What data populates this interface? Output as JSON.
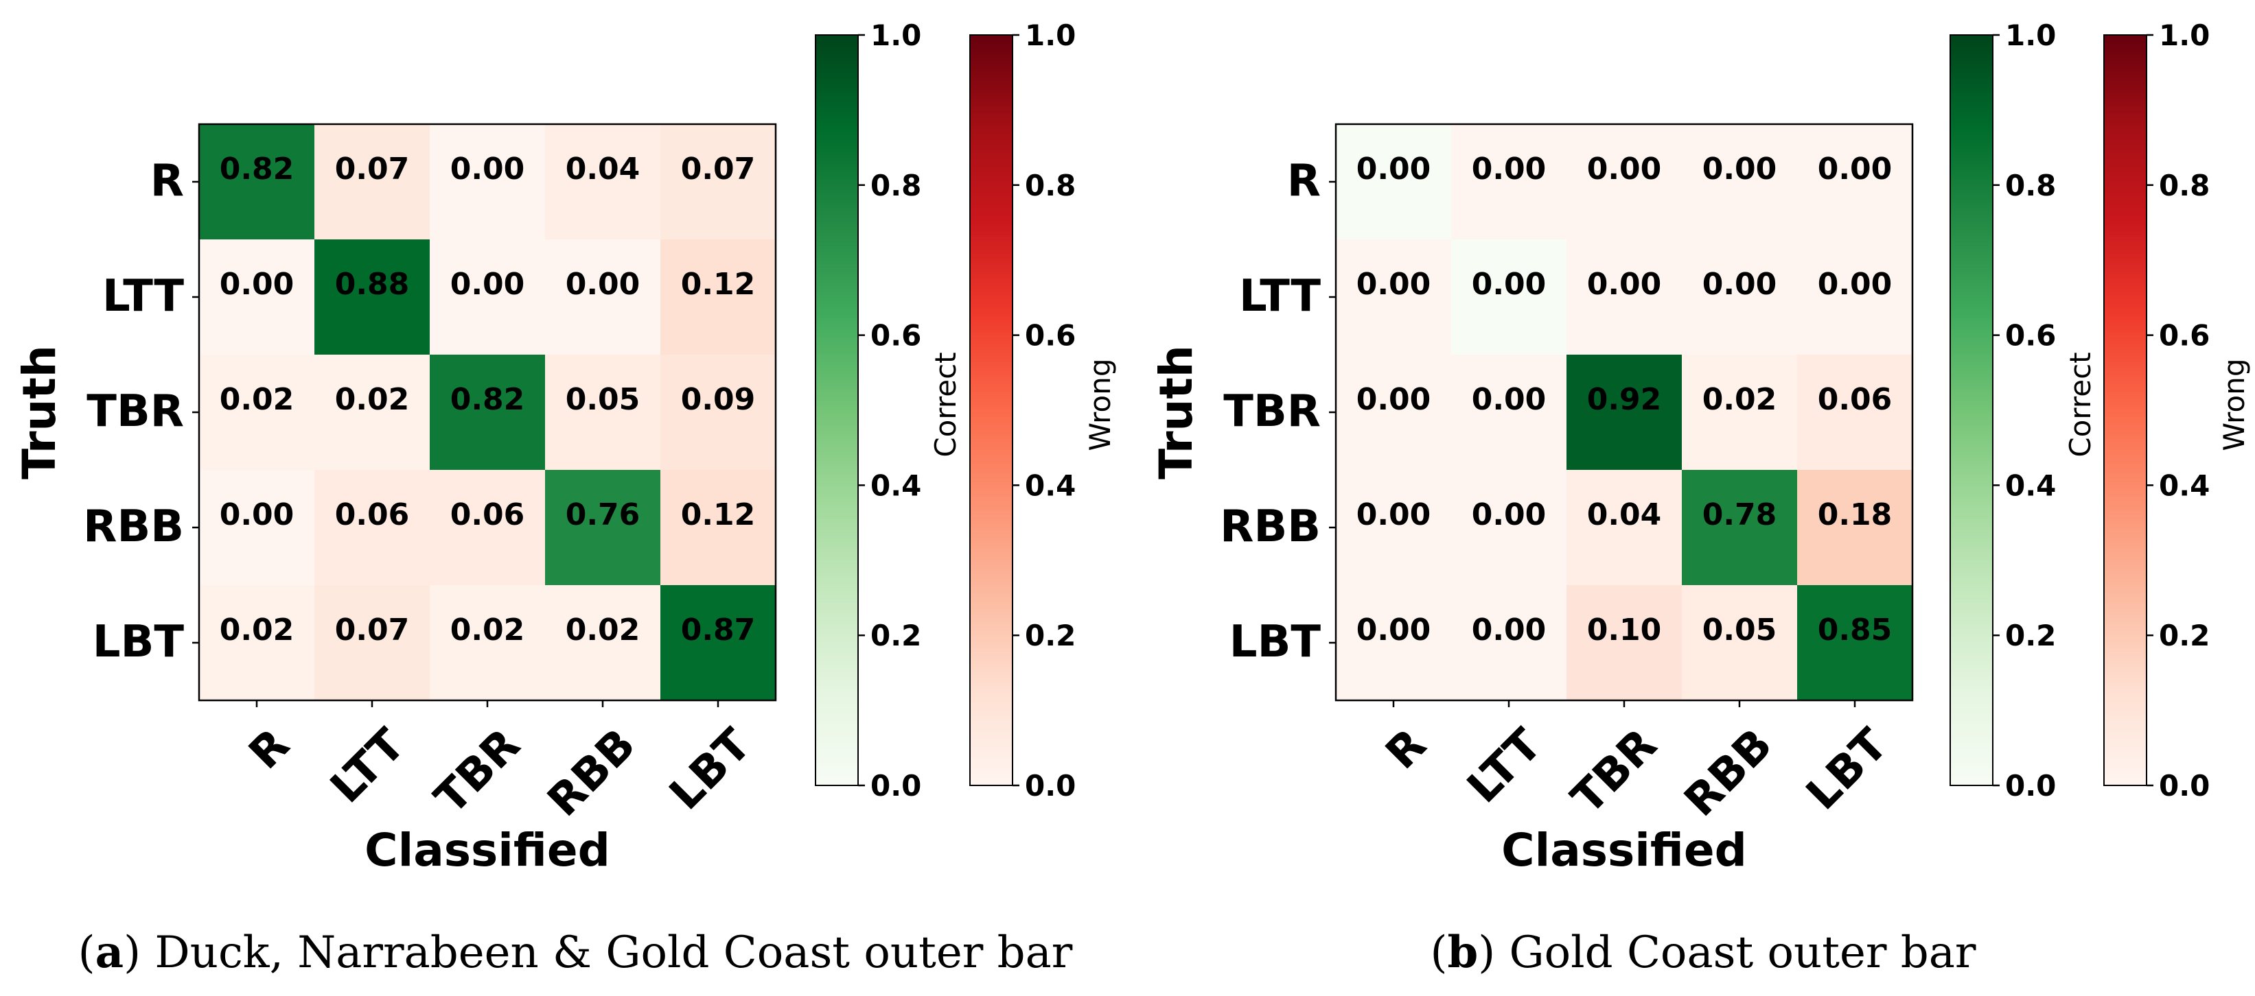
{
  "figure": {
    "panels": [
      {
        "caption_label": "a",
        "caption_text": "Duck, Narrabeen & Gold Coast outer bar"
      },
      {
        "caption_label": "b",
        "caption_text": "Gold Coast outer bar"
      }
    ]
  },
  "chart_data": [
    {
      "type": "heatmap",
      "subtype": "confusion-matrix",
      "xlabel": "Classified",
      "ylabel": "Truth",
      "x_categories": [
        "R",
        "LTT",
        "TBR",
        "RBB",
        "LBT"
      ],
      "y_categories": [
        "R",
        "LTT",
        "TBR",
        "RBB",
        "LBT"
      ],
      "values": [
        [
          0.82,
          0.07,
          0.0,
          0.04,
          0.07
        ],
        [
          0.0,
          0.88,
          0.0,
          0.0,
          0.12
        ],
        [
          0.02,
          0.02,
          0.82,
          0.05,
          0.09
        ],
        [
          0.0,
          0.06,
          0.06,
          0.76,
          0.12
        ],
        [
          0.02,
          0.07,
          0.02,
          0.02,
          0.87
        ]
      ],
      "colorbars": [
        {
          "label": "Correct",
          "colormap": "Greens",
          "range": [
            0.0,
            1.0
          ],
          "ticks": [
            "0.0",
            "0.2",
            "0.4",
            "0.6",
            "0.8",
            "1.0"
          ]
        },
        {
          "label": "Wrong",
          "colormap": "Reds",
          "range": [
            0.0,
            1.0
          ],
          "ticks": [
            "0.0",
            "0.2",
            "0.4",
            "0.6",
            "0.8",
            "1.0"
          ]
        }
      ]
    },
    {
      "type": "heatmap",
      "subtype": "confusion-matrix",
      "xlabel": "Classified",
      "ylabel": "Truth",
      "x_categories": [
        "R",
        "LTT",
        "TBR",
        "RBB",
        "LBT"
      ],
      "y_categories": [
        "R",
        "LTT",
        "TBR",
        "RBB",
        "LBT"
      ],
      "values": [
        [
          0.0,
          0.0,
          0.0,
          0.0,
          0.0
        ],
        [
          0.0,
          0.0,
          0.0,
          0.0,
          0.0
        ],
        [
          0.0,
          0.0,
          0.92,
          0.02,
          0.06
        ],
        [
          0.0,
          0.0,
          0.04,
          0.78,
          0.18
        ],
        [
          0.0,
          0.0,
          0.1,
          0.05,
          0.85
        ]
      ],
      "colorbars": [
        {
          "label": "Correct",
          "colormap": "Greens",
          "range": [
            0.0,
            1.0
          ],
          "ticks": [
            "0.0",
            "0.2",
            "0.4",
            "0.6",
            "0.8",
            "1.0"
          ]
        },
        {
          "label": "Wrong",
          "colormap": "Reds",
          "range": [
            0.0,
            1.0
          ],
          "ticks": [
            "0.0",
            "0.2",
            "0.4",
            "0.6",
            "0.8",
            "1.0"
          ]
        }
      ]
    }
  ]
}
